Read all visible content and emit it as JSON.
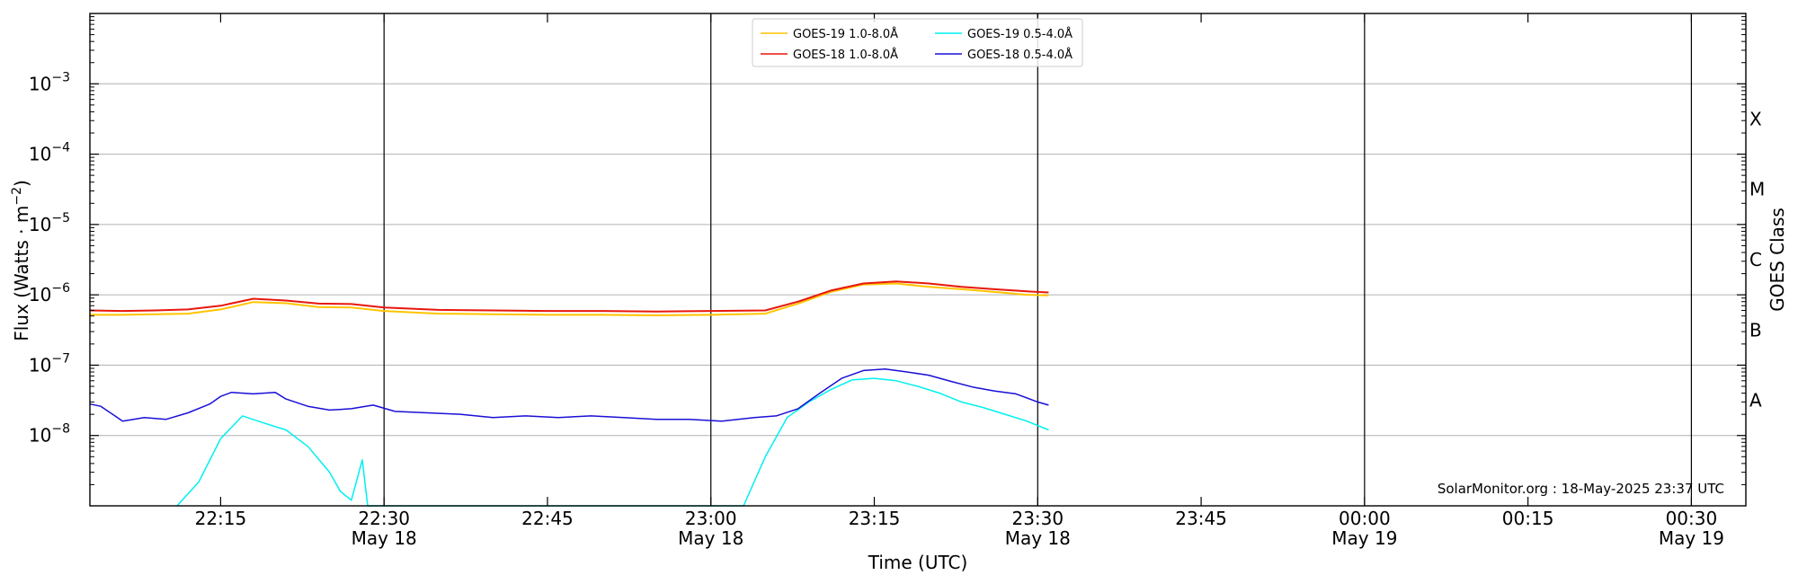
{
  "chart_data": {
    "type": "line",
    "title": "",
    "xlabel": "Time (UTC)",
    "ylabel": "Flux (Watts · m",
    "ylabel_sup": "−2",
    "ylabel_close": ")",
    "y2label": "GOES Class",
    "yscale": "log",
    "ylim": [
      1e-09,
      0.01
    ],
    "xlim": [
      "2025-05-18 22:03",
      "2025-05-19 00:35"
    ],
    "grid": "horizontal",
    "legend_position": "top-center",
    "credit": "SolarMonitor.org : 18-May-2025 23:37 UTC",
    "y_ticks": [
      {
        "value": 1e-08,
        "base": "10",
        "exp": "−8"
      },
      {
        "value": 1e-07,
        "base": "10",
        "exp": "−7"
      },
      {
        "value": 1e-06,
        "base": "10",
        "exp": "−6"
      },
      {
        "value": 1e-05,
        "base": "10",
        "exp": "−5"
      },
      {
        "value": 0.0001,
        "base": "10",
        "exp": "−4"
      },
      {
        "value": 0.001,
        "base": "10",
        "exp": "−3"
      }
    ],
    "x_ticks": [
      {
        "time": "2025-05-18 22:15",
        "label": "22:15",
        "date": ""
      },
      {
        "time": "2025-05-18 22:30",
        "label": "22:30",
        "date": "May 18"
      },
      {
        "time": "2025-05-18 22:45",
        "label": "22:45",
        "date": ""
      },
      {
        "time": "2025-05-18 23:00",
        "label": "23:00",
        "date": "May 18"
      },
      {
        "time": "2025-05-18 23:15",
        "label": "23:15",
        "date": ""
      },
      {
        "time": "2025-05-18 23:30",
        "label": "23:30",
        "date": "May 18"
      },
      {
        "time": "2025-05-18 23:45",
        "label": "23:45",
        "date": ""
      },
      {
        "time": "2025-05-19 00:00",
        "label": "00:00",
        "date": "May 19"
      },
      {
        "time": "2025-05-19 00:15",
        "label": "00:15",
        "date": ""
      },
      {
        "time": "2025-05-19 00:30",
        "label": "00:30",
        "date": "May 19"
      }
    ],
    "vlines": [
      "2025-05-18 22:30",
      "2025-05-18 23:00",
      "2025-05-18 23:30",
      "2025-05-19 00:00",
      "2025-05-19 00:30"
    ],
    "goes_classes": [
      {
        "label": "A",
        "value": 3.16e-08
      },
      {
        "label": "B",
        "value": 3.16e-07
      },
      {
        "label": "C",
        "value": 3.16e-06
      },
      {
        "label": "M",
        "value": 3.16e-05
      },
      {
        "label": "X",
        "value": 0.000316
      }
    ],
    "series": [
      {
        "name": "GOES-19 1.0-8.0Å",
        "color": "#ffc400",
        "x": [
          "2025-05-18 22:03",
          "2025-05-18 22:06",
          "2025-05-18 22:09",
          "2025-05-18 22:12",
          "2025-05-18 22:15",
          "2025-05-18 22:18",
          "2025-05-18 22:21",
          "2025-05-18 22:24",
          "2025-05-18 22:27",
          "2025-05-18 22:30",
          "2025-05-18 22:35",
          "2025-05-18 22:40",
          "2025-05-18 22:45",
          "2025-05-18 22:50",
          "2025-05-18 22:55",
          "2025-05-18 23:00",
          "2025-05-18 23:05",
          "2025-05-18 23:08",
          "2025-05-18 23:11",
          "2025-05-18 23:14",
          "2025-05-18 23:17",
          "2025-05-18 23:20",
          "2025-05-18 23:23",
          "2025-05-18 23:26",
          "2025-05-18 23:29",
          "2025-05-18 23:31"
        ],
        "values": [
          5.2e-07,
          5.2e-07,
          5.3e-07,
          5.4e-07,
          6.2e-07,
          7.9e-07,
          7.6e-07,
          6.7e-07,
          6.6e-07,
          5.9e-07,
          5.4e-07,
          5.3e-07,
          5.2e-07,
          5.2e-07,
          5.1e-07,
          5.2e-07,
          5.4e-07,
          7.5e-07,
          1.1e-06,
          1.4e-06,
          1.45e-06,
          1.3e-06,
          1.2e-06,
          1.1e-06,
          1e-06,
          9.8e-07
        ]
      },
      {
        "name": "GOES-18 1.0-8.0Å",
        "color": "#e8170c",
        "x": [
          "2025-05-18 22:03",
          "2025-05-18 22:06",
          "2025-05-18 22:09",
          "2025-05-18 22:12",
          "2025-05-18 22:15",
          "2025-05-18 22:18",
          "2025-05-18 22:21",
          "2025-05-18 22:24",
          "2025-05-18 22:27",
          "2025-05-18 22:30",
          "2025-05-18 22:35",
          "2025-05-18 22:40",
          "2025-05-18 22:45",
          "2025-05-18 22:50",
          "2025-05-18 22:55",
          "2025-05-18 23:00",
          "2025-05-18 23:05",
          "2025-05-18 23:08",
          "2025-05-18 23:11",
          "2025-05-18 23:14",
          "2025-05-18 23:17",
          "2025-05-18 23:20",
          "2025-05-18 23:23",
          "2025-05-18 23:26",
          "2025-05-18 23:29",
          "2025-05-18 23:31"
        ],
        "values": [
          6e-07,
          5.9e-07,
          6e-07,
          6.2e-07,
          7e-07,
          8.8e-07,
          8.3e-07,
          7.5e-07,
          7.4e-07,
          6.6e-07,
          6.1e-07,
          6e-07,
          5.9e-07,
          5.9e-07,
          5.8e-07,
          5.9e-07,
          6e-07,
          8e-07,
          1.15e-06,
          1.45e-06,
          1.55e-06,
          1.45e-06,
          1.3e-06,
          1.2e-06,
          1.12e-06,
          1.08e-06
        ]
      },
      {
        "name": "GOES-19 0.5-4.0Å",
        "color": "#00f0f0",
        "x": [
          "2025-05-18 22:11",
          "2025-05-18 22:13",
          "2025-05-18 22:15",
          "2025-05-18 22:17",
          "2025-05-18 22:19",
          "2025-05-18 22:21",
          "2025-05-18 22:23",
          "2025-05-18 22:25",
          "2025-05-18 22:26",
          "2025-05-18 22:27",
          "2025-05-18 22:28",
          "2025-05-18 22:28.5",
          "2025-05-18 22:29",
          "2025-05-18 23:03",
          "2025-05-18 23:05",
          "2025-05-18 23:07",
          "2025-05-18 23:09",
          "2025-05-18 23:11",
          "2025-05-18 23:13",
          "2025-05-18 23:15",
          "2025-05-18 23:17",
          "2025-05-18 23:19",
          "2025-05-18 23:21",
          "2025-05-18 23:23",
          "2025-05-18 23:25",
          "2025-05-18 23:27",
          "2025-05-18 23:29",
          "2025-05-18 23:31"
        ],
        "values": [
          1e-09,
          2.2e-09,
          9e-09,
          1.9e-08,
          1.5e-08,
          1.2e-08,
          7e-09,
          3e-09,
          1.6e-09,
          1.2e-09,
          4.5e-09,
          1e-09,
          1e-09,
          1e-09,
          5e-09,
          1.8e-08,
          3e-08,
          4.5e-08,
          6.2e-08,
          6.5e-08,
          6e-08,
          5e-08,
          4e-08,
          3e-08,
          2.5e-08,
          2e-08,
          1.6e-08,
          1.2e-08
        ]
      },
      {
        "name": "GOES-18 0.5-4.0Å",
        "color": "#1a0fd6",
        "x": [
          "2025-05-18 22:03",
          "2025-05-18 22:04",
          "2025-05-18 22:06",
          "2025-05-18 22:08",
          "2025-05-18 22:10",
          "2025-05-18 22:12",
          "2025-05-18 22:14",
          "2025-05-18 22:15",
          "2025-05-18 22:16",
          "2025-05-18 22:18",
          "2025-05-18 22:20",
          "2025-05-18 22:21",
          "2025-05-18 22:23",
          "2025-05-18 22:25",
          "2025-05-18 22:27",
          "2025-05-18 22:29",
          "2025-05-18 22:31",
          "2025-05-18 22:34",
          "2025-05-18 22:37",
          "2025-05-18 22:40",
          "2025-05-18 22:43",
          "2025-05-18 22:46",
          "2025-05-18 22:49",
          "2025-05-18 22:52",
          "2025-05-18 22:55",
          "2025-05-18 22:58",
          "2025-05-18 23:01",
          "2025-05-18 23:04",
          "2025-05-18 23:06",
          "2025-05-18 23:08",
          "2025-05-18 23:10",
          "2025-05-18 23:12",
          "2025-05-18 23:14",
          "2025-05-18 23:16",
          "2025-05-18 23:18",
          "2025-05-18 23:20",
          "2025-05-18 23:22",
          "2025-05-18 23:24",
          "2025-05-18 23:26",
          "2025-05-18 23:28",
          "2025-05-18 23:30",
          "2025-05-18 23:31"
        ],
        "values": [
          2.8e-08,
          2.6e-08,
          1.6e-08,
          1.8e-08,
          1.7e-08,
          2.1e-08,
          2.8e-08,
          3.6e-08,
          4.1e-08,
          3.9e-08,
          4.1e-08,
          3.3e-08,
          2.6e-08,
          2.3e-08,
          2.4e-08,
          2.7e-08,
          2.2e-08,
          2.1e-08,
          2e-08,
          1.8e-08,
          1.9e-08,
          1.8e-08,
          1.9e-08,
          1.8e-08,
          1.7e-08,
          1.7e-08,
          1.6e-08,
          1.8e-08,
          1.9e-08,
          2.4e-08,
          4e-08,
          6.5e-08,
          8.4e-08,
          8.8e-08,
          8e-08,
          7.2e-08,
          5.9e-08,
          4.9e-08,
          4.3e-08,
          3.9e-08,
          3e-08,
          2.7e-08
        ]
      }
    ]
  }
}
